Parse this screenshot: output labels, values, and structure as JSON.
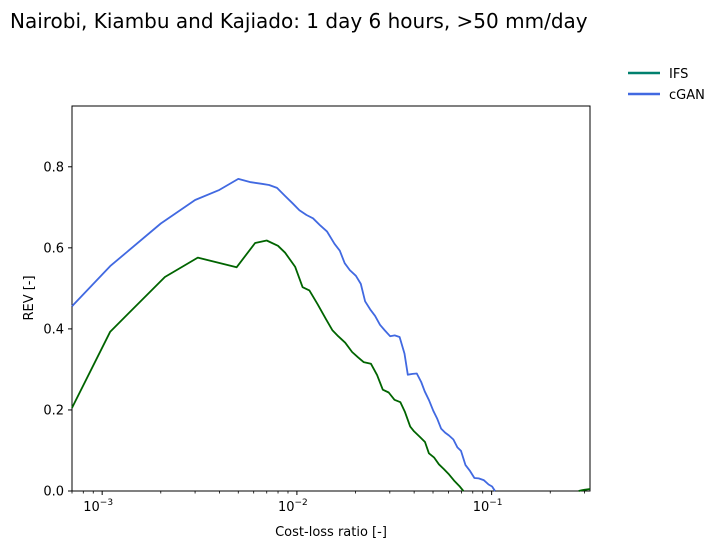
{
  "chart_data": {
    "type": "line",
    "title": "Nairobi, Kiambu and Kajiado: 1 day 6 hours, >50 mm/day",
    "xlabel": "Cost-loss ratio [-]",
    "ylabel": "REV [-]",
    "xscale": "log",
    "xlim": [
      0.0007,
      0.32
    ],
    "ylim": [
      0.0,
      0.95
    ],
    "x_ticks": [
      {
        "value": 0.001,
        "base": "10",
        "exp": "−3"
      },
      {
        "value": 0.01,
        "base": "10",
        "exp": "−2"
      },
      {
        "value": 0.1,
        "base": "10",
        "exp": "−1"
      }
    ],
    "y_ticks": [
      {
        "value": 0.0,
        "label": "0.0"
      },
      {
        "value": 0.2,
        "label": "0.2"
      },
      {
        "value": 0.4,
        "label": "0.4"
      },
      {
        "value": 0.6,
        "label": "0.6"
      },
      {
        "value": 0.8,
        "label": "0.8"
      }
    ],
    "grid": false,
    "legend_position": "outside top-right",
    "series": [
      {
        "name": "IFS",
        "legend_color": "#00806e",
        "color": "#006400",
        "points": [
          [
            0.0007,
            0.205
          ],
          [
            0.0011,
            0.393
          ],
          [
            0.0021,
            0.528
          ],
          [
            0.0031,
            0.576
          ],
          [
            0.0049,
            0.552
          ],
          [
            0.0061,
            0.612
          ],
          [
            0.007,
            0.618
          ],
          [
            0.008,
            0.605
          ],
          [
            0.0087,
            0.588
          ],
          [
            0.0098,
            0.553
          ],
          [
            0.0107,
            0.503
          ],
          [
            0.0116,
            0.495
          ],
          [
            0.0128,
            0.46
          ],
          [
            0.0141,
            0.424
          ],
          [
            0.0152,
            0.397
          ],
          [
            0.0163,
            0.382
          ],
          [
            0.0177,
            0.366
          ],
          [
            0.0192,
            0.343
          ],
          [
            0.0206,
            0.33
          ],
          [
            0.022,
            0.318
          ],
          [
            0.024,
            0.314
          ],
          [
            0.0258,
            0.286
          ],
          [
            0.0276,
            0.25
          ],
          [
            0.0296,
            0.243
          ],
          [
            0.0317,
            0.225
          ],
          [
            0.034,
            0.219
          ],
          [
            0.0358,
            0.196
          ],
          [
            0.0382,
            0.159
          ],
          [
            0.04,
            0.147
          ],
          [
            0.0429,
            0.133
          ],
          [
            0.0455,
            0.121
          ],
          [
            0.0476,
            0.093
          ],
          [
            0.0506,
            0.083
          ],
          [
            0.0536,
            0.066
          ],
          [
            0.0569,
            0.054
          ],
          [
            0.0604,
            0.041
          ],
          [
            0.0646,
            0.024
          ],
          [
            0.0683,
            0.012
          ],
          [
            0.0716,
            0.0
          ]
        ],
        "tail_points": [
          [
            0.28,
            0.0
          ],
          [
            0.29,
            0.002
          ],
          [
            0.3,
            0.003
          ],
          [
            0.31,
            0.004
          ],
          [
            0.32,
            0.005
          ]
        ]
      },
      {
        "name": "cGAN",
        "color": "#4169e1",
        "points": [
          [
            0.0007,
            0.456
          ],
          [
            0.0011,
            0.555
          ],
          [
            0.002,
            0.66
          ],
          [
            0.003,
            0.718
          ],
          [
            0.004,
            0.743
          ],
          [
            0.005,
            0.77
          ],
          [
            0.0058,
            0.762
          ],
          [
            0.0066,
            0.758
          ],
          [
            0.0072,
            0.755
          ],
          [
            0.0079,
            0.748
          ],
          [
            0.0087,
            0.728
          ],
          [
            0.0095,
            0.71
          ],
          [
            0.0103,
            0.693
          ],
          [
            0.0112,
            0.681
          ],
          [
            0.0121,
            0.673
          ],
          [
            0.0132,
            0.655
          ],
          [
            0.0143,
            0.64
          ],
          [
            0.0156,
            0.61
          ],
          [
            0.0166,
            0.593
          ],
          [
            0.0176,
            0.562
          ],
          [
            0.0187,
            0.545
          ],
          [
            0.0201,
            0.531
          ],
          [
            0.0213,
            0.511
          ],
          [
            0.0224,
            0.468
          ],
          [
            0.0238,
            0.448
          ],
          [
            0.0252,
            0.432
          ],
          [
            0.0267,
            0.41
          ],
          [
            0.0283,
            0.396
          ],
          [
            0.0301,
            0.382
          ],
          [
            0.0318,
            0.384
          ],
          [
            0.0337,
            0.38
          ],
          [
            0.0357,
            0.339
          ],
          [
            0.0371,
            0.287
          ],
          [
            0.0393,
            0.289
          ],
          [
            0.0413,
            0.29
          ],
          [
            0.0435,
            0.269
          ],
          [
            0.0453,
            0.246
          ],
          [
            0.0477,
            0.224
          ],
          [
            0.0502,
            0.198
          ],
          [
            0.0526,
            0.178
          ],
          [
            0.055,
            0.154
          ],
          [
            0.0577,
            0.144
          ],
          [
            0.0604,
            0.137
          ],
          [
            0.0636,
            0.127
          ],
          [
            0.0666,
            0.108
          ],
          [
            0.0696,
            0.099
          ],
          [
            0.0734,
            0.064
          ],
          [
            0.0775,
            0.049
          ],
          [
            0.0816,
            0.032
          ],
          [
            0.0858,
            0.031
          ],
          [
            0.091,
            0.027
          ],
          [
            0.0965,
            0.016
          ],
          [
            0.1005,
            0.011
          ],
          [
            0.1041,
            0.0
          ]
        ]
      }
    ]
  }
}
